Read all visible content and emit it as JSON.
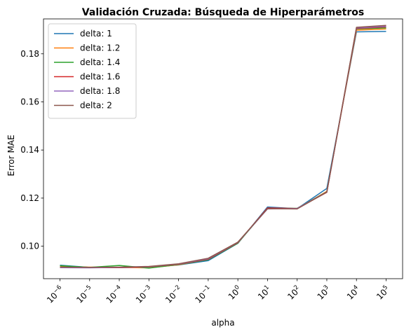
{
  "chart_data": {
    "type": "line",
    "title": "Validación Cruzada: Búsqueda de Hiperparámetros",
    "xlabel": "alpha",
    "ylabel": "Error MAE",
    "x_scale": "log",
    "x": [
      "1e-6",
      "1e-5",
      "1e-4",
      "1e-3",
      "1e-2",
      "1e-1",
      "1e0",
      "1e1",
      "1e2",
      "1e3",
      "1e4",
      "1e5"
    ],
    "x_tick_labels": [
      {
        "base": "10",
        "exp": "−6"
      },
      {
        "base": "10",
        "exp": "−5"
      },
      {
        "base": "10",
        "exp": "−4"
      },
      {
        "base": "10",
        "exp": "−3"
      },
      {
        "base": "10",
        "exp": "−2"
      },
      {
        "base": "10",
        "exp": "−1"
      },
      {
        "base": "10",
        "exp": "0"
      },
      {
        "base": "10",
        "exp": "1"
      },
      {
        "base": "10",
        "exp": "2"
      },
      {
        "base": "10",
        "exp": "3"
      },
      {
        "base": "10",
        "exp": "4"
      },
      {
        "base": "10",
        "exp": "5"
      }
    ],
    "ylim": [
      0.0865,
      0.1945
    ],
    "y_ticks": [
      0.1,
      0.12,
      0.14,
      0.16,
      0.18
    ],
    "y_tick_labels": [
      "0.10",
      "0.12",
      "0.14",
      "0.16",
      "0.18"
    ],
    "grid": false,
    "legend_position": "top-left",
    "series": [
      {
        "name": "delta: 1",
        "color": "#1f77b4",
        "values": [
          0.0921,
          0.0912,
          0.0911,
          0.0913,
          0.0922,
          0.094,
          0.1012,
          0.1163,
          0.1156,
          0.124,
          0.1891,
          0.1893
        ]
      },
      {
        "name": "delta: 1.2",
        "color": "#ff7f0e",
        "values": [
          0.0915,
          0.0913,
          0.0912,
          0.091,
          0.0923,
          0.0945,
          0.1014,
          0.1158,
          0.1156,
          0.1228,
          0.1898,
          0.1903
        ]
      },
      {
        "name": "delta: 1.4",
        "color": "#2ca02c",
        "values": [
          0.0919,
          0.0912,
          0.092,
          0.0909,
          0.0924,
          0.0944,
          0.1013,
          0.1157,
          0.1158,
          0.1226,
          0.1903,
          0.1908
        ]
      },
      {
        "name": "delta: 1.6",
        "color": "#d62728",
        "values": [
          0.0912,
          0.0911,
          0.0911,
          0.0914,
          0.0925,
          0.0946,
          0.1015,
          0.1159,
          0.1157,
          0.1224,
          0.1905,
          0.1912
        ]
      },
      {
        "name": "delta: 1.8",
        "color": "#9467bd",
        "values": [
          0.0911,
          0.091,
          0.0912,
          0.0915,
          0.0926,
          0.0948,
          0.1016,
          0.1155,
          0.1157,
          0.1225,
          0.1907,
          0.1914
        ]
      },
      {
        "name": "delta: 2",
        "color": "#8c564b",
        "values": [
          0.0913,
          0.0912,
          0.0913,
          0.0916,
          0.0927,
          0.095,
          0.1017,
          0.1156,
          0.1155,
          0.1225,
          0.191,
          0.1918
        ]
      }
    ]
  }
}
